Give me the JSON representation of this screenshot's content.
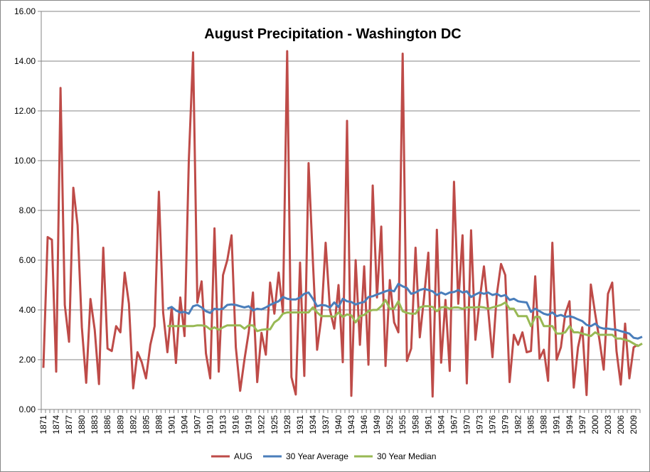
{
  "chart_data": {
    "type": "line",
    "title": "August Precipitation - Washington DC",
    "xlabel": "",
    "ylabel": "",
    "ylim": [
      0,
      16
    ],
    "yticks": [
      "0.00",
      "2.00",
      "4.00",
      "6.00",
      "8.00",
      "10.00",
      "12.00",
      "14.00",
      "16.00"
    ],
    "x_tick_labels": [
      "1871",
      "1874",
      "1877",
      "1880",
      "1883",
      "1886",
      "1889",
      "1892",
      "1895",
      "1898",
      "1901",
      "1904",
      "1907",
      "1910",
      "1913",
      "1916",
      "1919",
      "1922",
      "1925",
      "1928",
      "1931",
      "1934",
      "1937",
      "1940",
      "1943",
      "1946",
      "1949",
      "1952",
      "1955",
      "1958",
      "1961",
      "1964",
      "1967",
      "1970",
      "1973",
      "1976",
      "1979",
      "1982",
      "1985",
      "1988",
      "1991",
      "1994",
      "1997",
      "2000",
      "2003",
      "2006",
      "2009"
    ],
    "grid": "horizontal",
    "legend_position": "bottom",
    "colors": {
      "aug": "#be4b48",
      "avg": "#4a7ebb",
      "median": "#98b954"
    },
    "series": [
      {
        "name": "AUG",
        "start_year": 1871,
        "values": [
          1.67,
          6.93,
          6.82,
          1.52,
          12.92,
          4.2,
          2.72,
          8.91,
          7.4,
          3.3,
          1.07,
          4.44,
          3.2,
          1.02,
          6.5,
          2.45,
          2.35,
          3.35,
          3.1,
          5.5,
          4.25,
          0.85,
          2.3,
          1.9,
          1.25,
          2.6,
          3.35,
          8.75,
          3.9,
          2.3,
          4.1,
          1.87,
          4.5,
          2.95,
          10.0,
          14.35,
          4.3,
          5.15,
          2.25,
          1.25,
          7.28,
          1.52,
          5.4,
          6.0,
          7.0,
          2.5,
          0.75,
          2.0,
          3.1,
          4.7,
          1.1,
          3.08,
          2.2,
          5.1,
          3.85,
          5.5,
          3.9,
          14.4,
          1.3,
          0.6,
          5.9,
          1.35,
          9.9,
          6.0,
          2.4,
          3.7,
          6.7,
          4.0,
          3.25,
          5.0,
          1.9,
          11.6,
          0.55,
          6.0,
          2.6,
          5.75,
          1.8,
          9.0,
          4.5,
          7.35,
          1.75,
          5.2,
          3.5,
          3.1,
          14.3,
          1.95,
          2.45,
          6.5,
          2.9,
          4.5,
          6.3,
          0.52,
          7.22,
          1.88,
          4.4,
          1.55,
          9.15,
          4.25,
          7.0,
          1.05,
          7.2,
          2.8,
          4.4,
          5.75,
          4.0,
          2.1,
          4.6,
          5.85,
          5.4,
          1.1,
          3.0,
          2.6,
          3.1,
          2.3,
          2.35,
          5.35,
          2.05,
          2.4,
          1.15,
          6.7,
          2.0,
          2.5,
          3.85,
          4.35,
          0.88,
          2.5,
          3.3,
          0.58,
          5.02,
          3.85,
          2.8,
          1.6,
          4.65,
          5.1,
          2.35,
          1.0,
          3.45,
          1.25,
          2.5,
          2.6
        ]
      },
      {
        "name": "30 Year Average",
        "start_year": 1900,
        "values": [
          4.05,
          4.12,
          3.98,
          3.9,
          3.92,
          3.85,
          4.15,
          4.2,
          4.1,
          3.95,
          3.88,
          4.05,
          4.02,
          4.05,
          4.2,
          4.22,
          4.2,
          4.15,
          4.1,
          4.15,
          3.98,
          4.05,
          4.02,
          4.1,
          4.2,
          4.28,
          4.35,
          4.52,
          4.45,
          4.42,
          4.42,
          4.5,
          4.65,
          4.7,
          4.45,
          4.15,
          4.2,
          4.18,
          4.1,
          4.3,
          4.12,
          4.45,
          4.35,
          4.32,
          4.22,
          4.28,
          4.32,
          4.52,
          4.55,
          4.62,
          4.68,
          4.75,
          4.8,
          4.75,
          5.05,
          4.95,
          4.88,
          4.65,
          4.7,
          4.8,
          4.85,
          4.8,
          4.75,
          4.6,
          4.7,
          4.62,
          4.7,
          4.72,
          4.8,
          4.7,
          4.75,
          4.52,
          4.62,
          4.7,
          4.65,
          4.7,
          4.6,
          4.65,
          4.55,
          4.6,
          4.4,
          4.45,
          4.35,
          4.32,
          4.3,
          3.92,
          4.05,
          3.95,
          3.85,
          3.8,
          3.9,
          3.75,
          3.8,
          3.72,
          3.75,
          3.7,
          3.62,
          3.55,
          3.4,
          3.35,
          3.45,
          3.3,
          3.25,
          3.25,
          3.22,
          3.2,
          3.15,
          3.1,
          3.05,
          2.88,
          2.85,
          2.92
        ]
      },
      {
        "name": "30 Year Median",
        "start_year": 1900,
        "values": [
          3.35,
          3.35,
          3.35,
          3.35,
          3.35,
          3.35,
          3.35,
          3.38,
          3.38,
          3.35,
          3.22,
          3.3,
          3.2,
          3.3,
          3.38,
          3.38,
          3.38,
          3.38,
          3.25,
          3.38,
          3.38,
          3.15,
          3.2,
          3.22,
          3.22,
          3.5,
          3.62,
          3.85,
          3.9,
          3.9,
          3.9,
          3.9,
          3.9,
          3.9,
          4.1,
          3.9,
          3.75,
          3.75,
          3.75,
          3.72,
          3.9,
          3.72,
          3.82,
          3.78,
          3.5,
          3.75,
          3.8,
          3.95,
          4.0,
          4.0,
          4.15,
          4.4,
          4.05,
          4.05,
          4.35,
          3.95,
          3.88,
          3.85,
          3.85,
          4.1,
          4.15,
          4.15,
          4.12,
          3.95,
          4.1,
          4.12,
          4.05,
          4.1,
          4.1,
          4.05,
          4.1,
          4.1,
          4.1,
          4.12,
          4.1,
          4.05,
          4.1,
          4.15,
          4.2,
          4.3,
          4.05,
          4.05,
          3.75,
          3.75,
          3.75,
          3.35,
          3.72,
          3.72,
          3.35,
          3.35,
          3.35,
          3.05,
          3.05,
          3.1,
          3.35,
          3.1,
          3.1,
          3.05,
          3.0,
          2.95,
          3.1,
          3.0,
          3.0,
          3.0,
          3.0,
          2.85,
          2.85,
          2.8,
          2.75,
          2.65,
          2.55,
          2.65
        ]
      }
    ]
  }
}
